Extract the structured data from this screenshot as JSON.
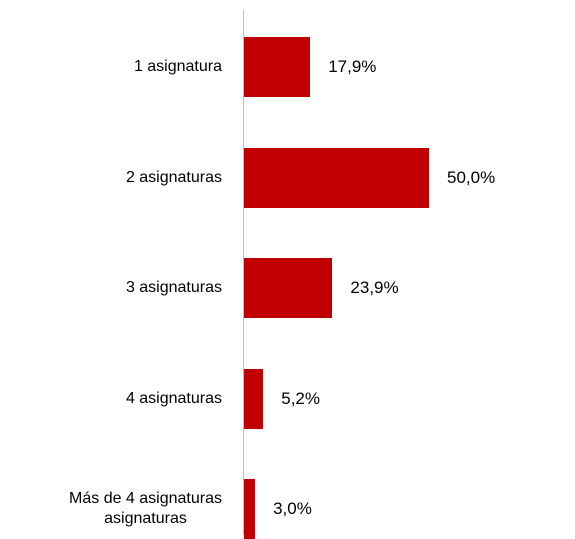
{
  "chart_data": {
    "type": "hbar",
    "categories": [
      "1 asignatura",
      "2 asignaturas",
      "3 asignaturas",
      "4 asignaturas",
      "Más  de 4 asignaturas\nasignaturas"
    ],
    "values": [
      17.9,
      50.0,
      23.9,
      5.2,
      3.0
    ],
    "value_labels": [
      "17,9%",
      "50,0%",
      "23,9%",
      "5,2%",
      "3,0%"
    ],
    "color": "#c00000",
    "xlim": [
      0,
      50
    ]
  }
}
